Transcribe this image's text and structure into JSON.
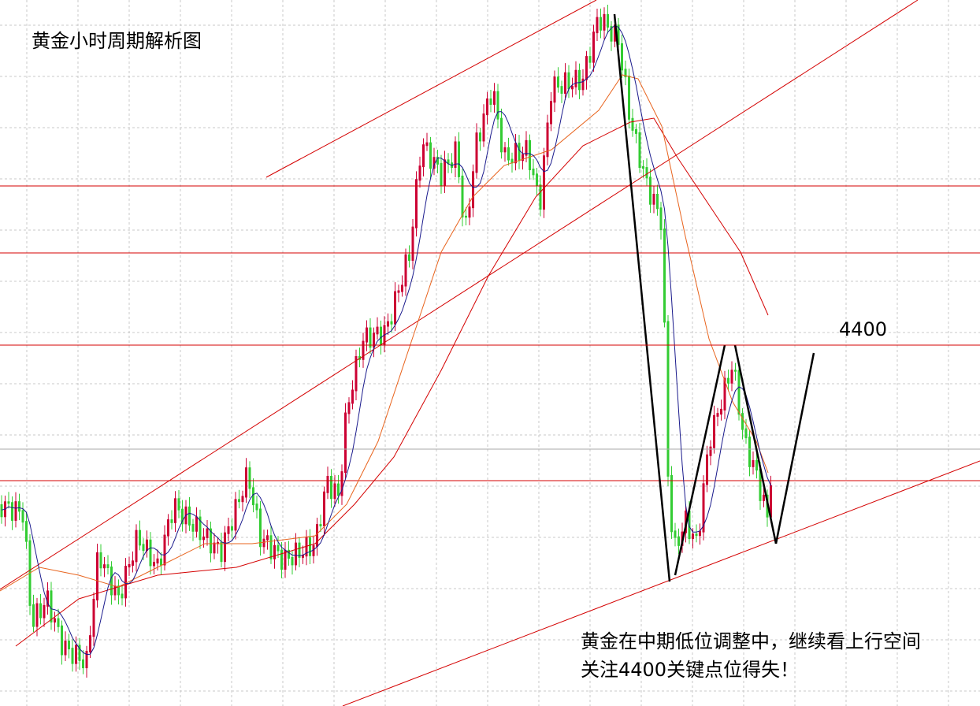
{
  "chart_data": {
    "type": "candlestick",
    "title": "黄金小时周期解析图",
    "levels": [
      4400
    ],
    "annotations": [
      "黄金在中期低位调整中，继续看上行空间",
      "关注4400关键点位得失！"
    ]
  }
}
